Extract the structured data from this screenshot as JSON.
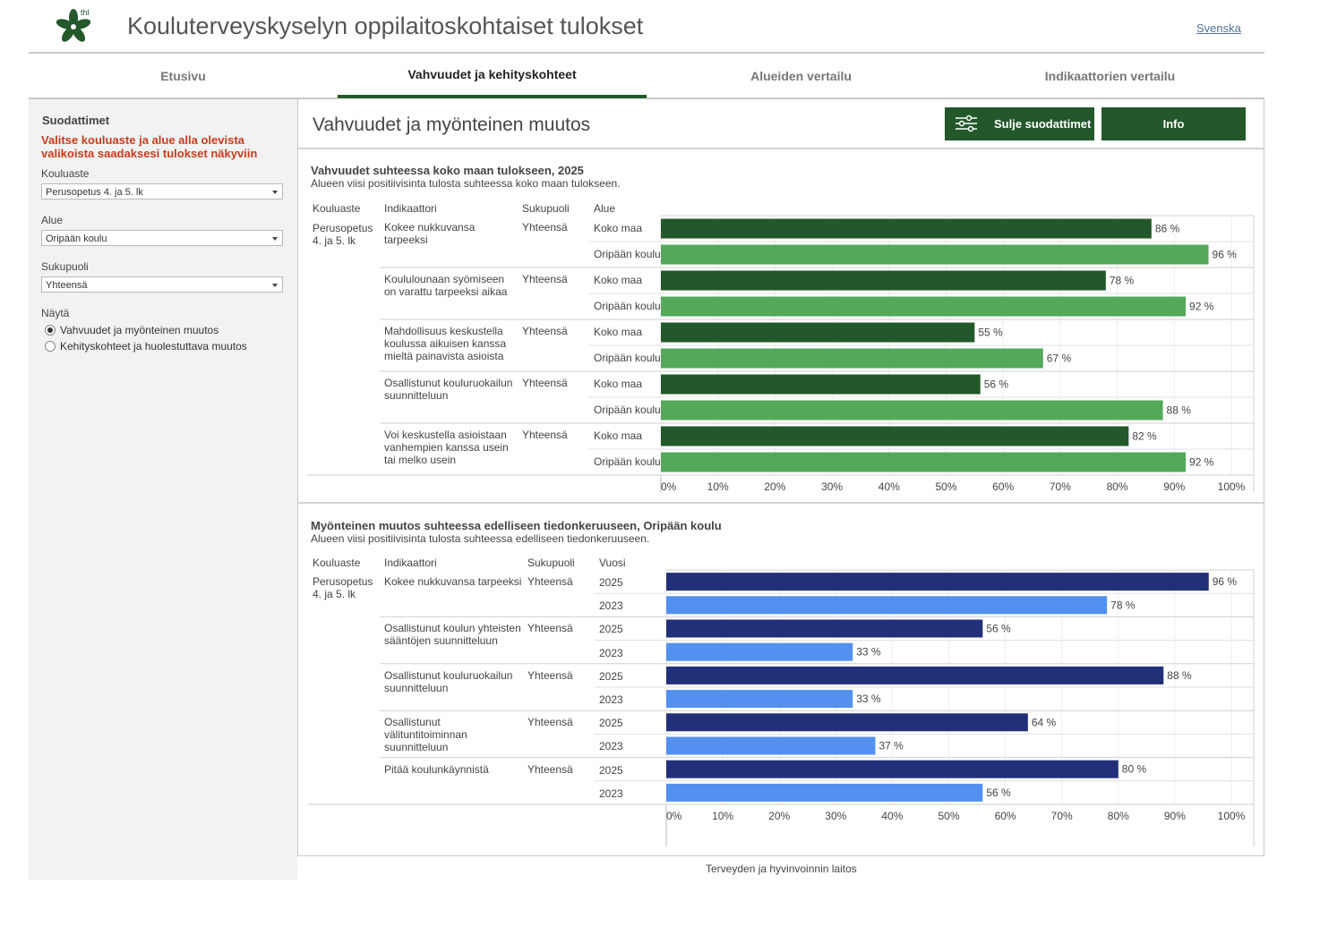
{
  "header": {
    "title": "Kouluterveyskyselyn oppilaitoskohtaiset tulokset",
    "logo_text": "thl",
    "language_link": "Svenska"
  },
  "tabs": [
    {
      "label": "Etusivu",
      "active": false
    },
    {
      "label": "Vahvuudet ja kehityskohteet",
      "active": true
    },
    {
      "label": "Alueiden vertailu",
      "active": false
    },
    {
      "label": "Indikaattorien vertailu",
      "active": false
    }
  ],
  "sidebar": {
    "title": "Suodattimet",
    "hint": "Valitse kouluaste ja alue alla olevista valikoista saadaksesi tulokset näkyviin",
    "filters": [
      {
        "label": "Kouluaste",
        "value": "Perusopetus 4. ja 5. lk"
      },
      {
        "label": "Alue",
        "value": "Oripään koulu"
      },
      {
        "label": "Sukupuoli",
        "value": "Yhteensä"
      }
    ],
    "show_label": "Näytä",
    "show_options": [
      {
        "label": "Vahvuudet ja myönteinen muutos",
        "checked": true
      },
      {
        "label": "Kehityskohteet ja huolestuttava muutos",
        "checked": false
      }
    ]
  },
  "main": {
    "heading": "Vahvuudet ja myönteinen muutos",
    "close_filters_button": "Sulje suodattimet",
    "info_button": "Info"
  },
  "colors": {
    "accent": "#23582a",
    "national": "#23582a",
    "school": "#53a85a",
    "year_current": "#22307a",
    "year_previous": "#5390f0",
    "hint": "#c83c1e"
  },
  "chart_data": [
    {
      "type": "bar",
      "orientation": "horizontal",
      "title": "Vahvuudet suhteessa koko maan tulokseen, 2025",
      "subtitle": "Alueen viisi positiivisinta tulosta suhteessa koko maan tulokseen.",
      "columns": [
        "Kouluaste",
        "Indikaattori",
        "Sukupuoli",
        "Alue"
      ],
      "school_level": "Perusopetus 4. ja 5. lk",
      "xlim": [
        0,
        100
      ],
      "ticks": [
        "0%",
        "10%",
        "20%",
        "30%",
        "40%",
        "50%",
        "60%",
        "70%",
        "80%",
        "90%",
        "100%"
      ],
      "grid": true,
      "groups": [
        {
          "indicator": "Kokee nukkuvansa tarpeeksi",
          "gender": "Yhteensä",
          "rows": [
            {
              "label": "Koko maa",
              "value": 86,
              "text": "86 %"
            },
            {
              "label": "Oripään koulu",
              "value": 96,
              "text": "96 %"
            }
          ]
        },
        {
          "indicator": "Koululounaan syömiseen on varattu tarpeeksi aikaa",
          "gender": "Yhteensä",
          "rows": [
            {
              "label": "Koko maa",
              "value": 78,
              "text": "78 %"
            },
            {
              "label": "Oripään koulu",
              "value": 92,
              "text": "92 %"
            }
          ]
        },
        {
          "indicator": "Mahdollisuus keskustella koulussa aikuisen kanssa mieltä painavista asioista",
          "gender": "Yhteensä",
          "rows": [
            {
              "label": "Koko maa",
              "value": 55,
              "text": "55 %"
            },
            {
              "label": "Oripään koulu",
              "value": 67,
              "text": "67 %"
            }
          ]
        },
        {
          "indicator": "Osallistunut kouluruokailun suunnitteluun",
          "gender": "Yhteensä",
          "rows": [
            {
              "label": "Koko maa",
              "value": 56,
              "text": "56 %"
            },
            {
              "label": "Oripään koulu",
              "value": 88,
              "text": "88 %"
            }
          ]
        },
        {
          "indicator": "Voi keskustella asioistaan vanhempien kanssa usein tai melko usein",
          "gender": "Yhteensä",
          "rows": [
            {
              "label": "Koko maa",
              "value": 82,
              "text": "82 %"
            },
            {
              "label": "Oripään koulu",
              "value": 92,
              "text": "92 %"
            }
          ]
        }
      ]
    },
    {
      "type": "bar",
      "orientation": "horizontal",
      "title": "Myönteinen muutos suhteessa edelliseen tiedonkeruuseen, Oripään koulu",
      "subtitle": "Alueen viisi positiivisinta tulosta suhteessa edelliseen tiedonkeruuseen.",
      "columns": [
        "Kouluaste",
        "Indikaattori",
        "Sukupuoli",
        "Vuosi"
      ],
      "school_level": "Perusopetus 4. ja 5. lk",
      "xlim": [
        0,
        100
      ],
      "ticks": [
        "0%",
        "10%",
        "20%",
        "30%",
        "40%",
        "50%",
        "60%",
        "70%",
        "80%",
        "90%",
        "100%"
      ],
      "grid": true,
      "groups": [
        {
          "indicator": "Kokee nukkuvansa tarpeeksi",
          "gender": "Yhteensä",
          "rows": [
            {
              "label": "2025",
              "value": 96,
              "text": "96 %"
            },
            {
              "label": "2023",
              "value": 78,
              "text": "78 %"
            }
          ]
        },
        {
          "indicator": "Osallistunut koulun yhteisten sääntöjen suunnitteluun",
          "gender": "Yhteensä",
          "rows": [
            {
              "label": "2025",
              "value": 56,
              "text": "56 %"
            },
            {
              "label": "2023",
              "value": 33,
              "text": "33 %"
            }
          ]
        },
        {
          "indicator": "Osallistunut kouluruokailun suunnitteluun",
          "gender": "Yhteensä",
          "rows": [
            {
              "label": "2025",
              "value": 88,
              "text": "88 %"
            },
            {
              "label": "2023",
              "value": 33,
              "text": "33 %"
            }
          ]
        },
        {
          "indicator": "Osallistunut välituntitoiminnan suunnitteluun",
          "gender": "Yhteensä",
          "rows": [
            {
              "label": "2025",
              "value": 64,
              "text": "64 %"
            },
            {
              "label": "2023",
              "value": 37,
              "text": "37 %"
            }
          ]
        },
        {
          "indicator": "Pitää koulunkäynnistä",
          "gender": "Yhteensä",
          "rows": [
            {
              "label": "2025",
              "value": 80,
              "text": "80 %"
            },
            {
              "label": "2023",
              "value": 56,
              "text": "56 %"
            }
          ]
        }
      ]
    }
  ],
  "footer": {
    "text": "Terveyden ja hyvinvoinnin laitos"
  }
}
